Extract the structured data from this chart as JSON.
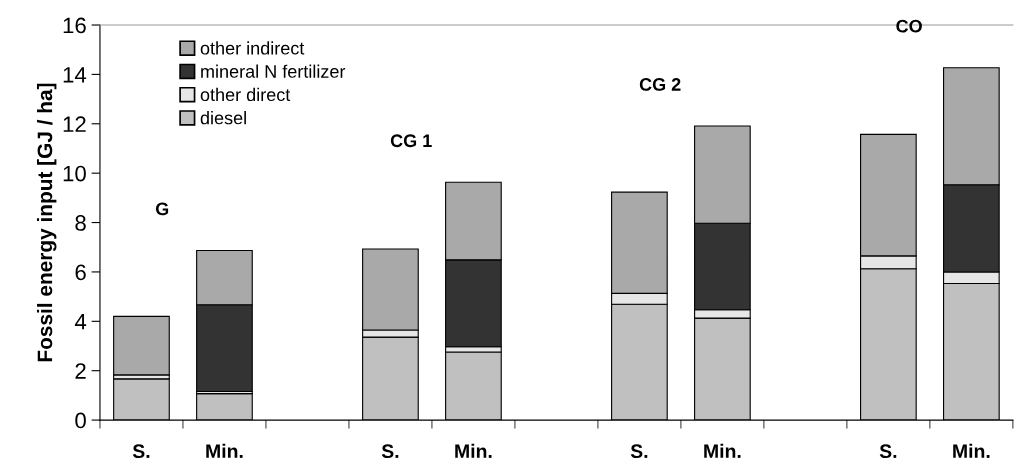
{
  "chart_data": {
    "type": "bar",
    "stacked": true,
    "ylabel": "Fossil energy input [GJ / ha]",
    "categories": [
      "S.",
      "Min.",
      null,
      "S.",
      "Min.",
      null,
      "S.",
      "Min.",
      null,
      "S.",
      "Min."
    ],
    "series": [
      {
        "name": "diesel",
        "color": "#c0c0c0",
        "values": [
          1.67,
          1.07,
          null,
          3.36,
          2.76,
          null,
          4.69,
          4.13,
          null,
          6.13,
          5.53
        ]
      },
      {
        "name": "other direct",
        "color": "#e6e6e6",
        "values": [
          0.16,
          0.09,
          null,
          0.29,
          0.21,
          null,
          0.44,
          0.34,
          null,
          0.52,
          0.47
        ]
      },
      {
        "name": "mineral N fertilizer",
        "color": "#333333",
        "values": [
          0,
          3.51,
          null,
          0,
          3.52,
          null,
          0,
          3.5,
          null,
          0,
          3.53
        ]
      },
      {
        "name": "other indirect",
        "color": "#a9a9a9",
        "values": [
          2.37,
          2.2,
          null,
          3.28,
          3.14,
          null,
          4.1,
          3.94,
          null,
          4.92,
          4.74
        ]
      }
    ],
    "annotations": [
      "G",
      "CG 1",
      "CG 2",
      "CO"
    ],
    "ylim": [
      0,
      16
    ],
    "yticks": [
      0,
      2,
      4,
      6,
      8,
      10,
      12,
      14,
      16
    ],
    "grid": false,
    "legend": "top left"
  }
}
